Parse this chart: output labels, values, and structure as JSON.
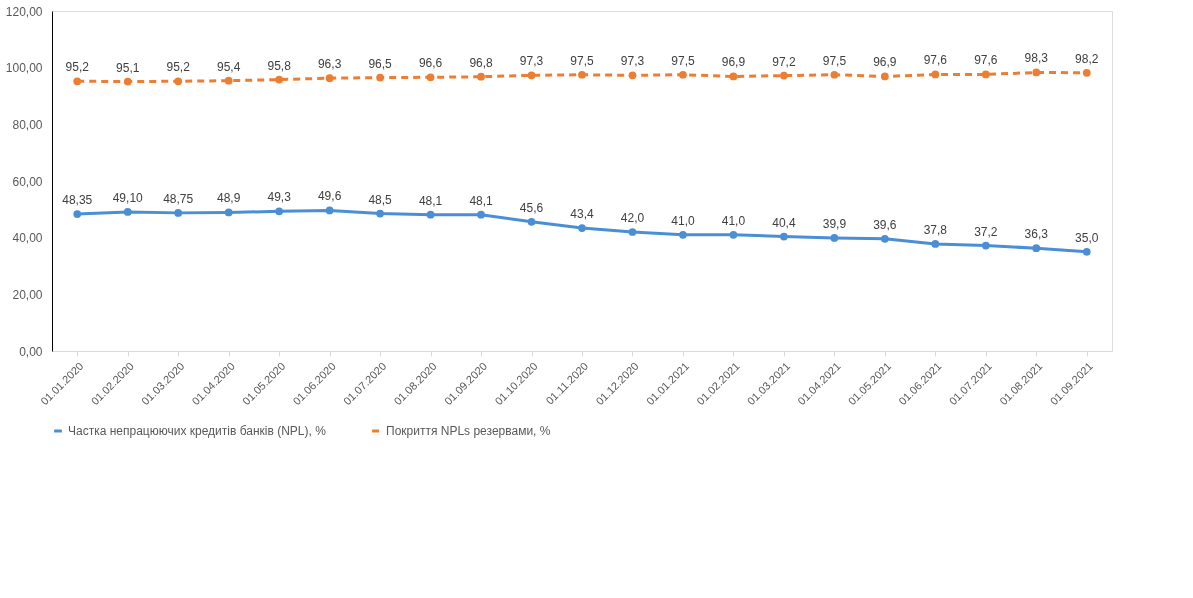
{
  "chart_data": {
    "type": "line",
    "categories": [
      "01.01.2020",
      "01.02.2020",
      "01.03.2020",
      "01.04.2020",
      "01.05.2020",
      "01.06.2020",
      "01.07.2020",
      "01.08.2020",
      "01.09.2020",
      "01.10.2020",
      "01.11.2020",
      "01.12.2020",
      "01.01.2021",
      "01.02.2021",
      "01.03.2021",
      "01.04.2021",
      "01.05.2021",
      "01.06.2021",
      "01.07.2021",
      "01.08.2021",
      "01.09.2021"
    ],
    "series": [
      {
        "name": "Частка непрацюючих кредитів банків (NPL), %",
        "color": "#4a8fd6",
        "line_style": "solid",
        "values": [
          48.35,
          49.1,
          48.75,
          48.9,
          49.3,
          49.6,
          48.5,
          48.1,
          48.1,
          45.6,
          43.4,
          42.0,
          41.0,
          41.0,
          40.4,
          39.9,
          39.6,
          37.8,
          37.2,
          36.3,
          35.0
        ],
        "value_labels": [
          "48,35",
          "49,10",
          "48,75",
          "48,9",
          "49,3",
          "49,6",
          "48,5",
          "48,1",
          "48,1",
          "45,6",
          "43,4",
          "42,0",
          "41,0",
          "41,0",
          "40,4",
          "39,9",
          "39,6",
          "37,8",
          "37,2",
          "36,3",
          "35,0"
        ]
      },
      {
        "name": "Покриття NPLs резервами, %",
        "color": "#ed7d31",
        "line_style": "dashed",
        "values": [
          95.2,
          95.1,
          95.2,
          95.4,
          95.8,
          96.3,
          96.5,
          96.6,
          96.8,
          97.3,
          97.5,
          97.3,
          97.5,
          96.9,
          97.2,
          97.5,
          96.9,
          97.6,
          97.6,
          98.3,
          98.2
        ],
        "value_labels": [
          "95,2",
          "95,1",
          "95,2",
          "95,4",
          "95,8",
          "96,3",
          "96,5",
          "96,6",
          "96,8",
          "97,3",
          "97,5",
          "97,3",
          "97,5",
          "96,9",
          "97,2",
          "97,5",
          "96,9",
          "97,6",
          "97,6",
          "98,3",
          "98,2"
        ]
      }
    ],
    "ylim": [
      0,
      120
    ],
    "yticks": [
      {
        "value": 0,
        "label": "0,00"
      },
      {
        "value": 20,
        "label": "20,00"
      },
      {
        "value": 40,
        "label": "40,00"
      },
      {
        "value": 60,
        "label": "60,00"
      },
      {
        "value": 80,
        "label": "80,00"
      },
      {
        "value": 100,
        "label": "100,00"
      },
      {
        "value": 120,
        "label": "120,00"
      }
    ],
    "grid": false,
    "legend": "bottom",
    "marker": "circle"
  }
}
